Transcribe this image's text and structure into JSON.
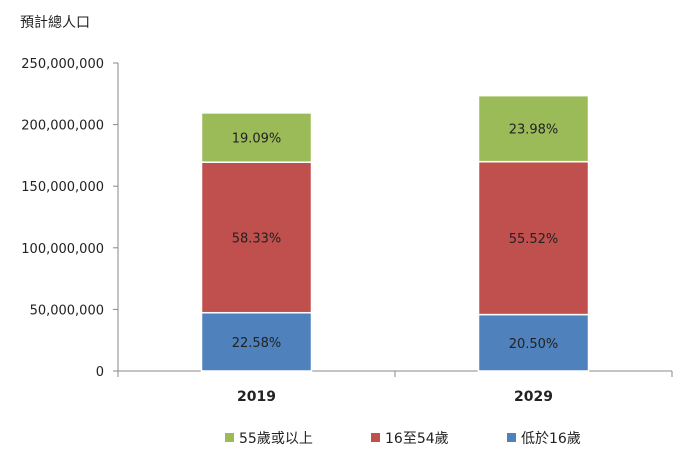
{
  "chart_data": {
    "type": "bar",
    "stacked": true,
    "ylabel": "預計總人口",
    "ylim": [
      0,
      250000000
    ],
    "yticks": [
      0,
      50000000,
      100000000,
      150000000,
      200000000,
      250000000
    ],
    "ytick_labels": [
      "0",
      "50,000,000",
      "100,000,000",
      "150,000,000",
      "200,000,000",
      "250,000,000"
    ],
    "categories": [
      "2019",
      "2029"
    ],
    "series": [
      {
        "name": "低於16歲",
        "color": "#4f81bd",
        "values": [
          47300000,
          45800000
        ],
        "labels": [
          "22.58%",
          "20.50%"
        ]
      },
      {
        "name": "16至54歲",
        "color": "#c0504d",
        "values": [
          122200000,
          124100000
        ],
        "labels": [
          "58.33%",
          "55.52%"
        ]
      },
      {
        "name": "55歲或以上",
        "color": "#9bbb59",
        "values": [
          40000000,
          53600000
        ],
        "labels": [
          "19.09%",
          "23.98%"
        ]
      }
    ],
    "legend_order": [
      "55歲或以上",
      "16至54歲",
      "低於16歲"
    ],
    "legend_position": "bottom",
    "grid": false
  }
}
